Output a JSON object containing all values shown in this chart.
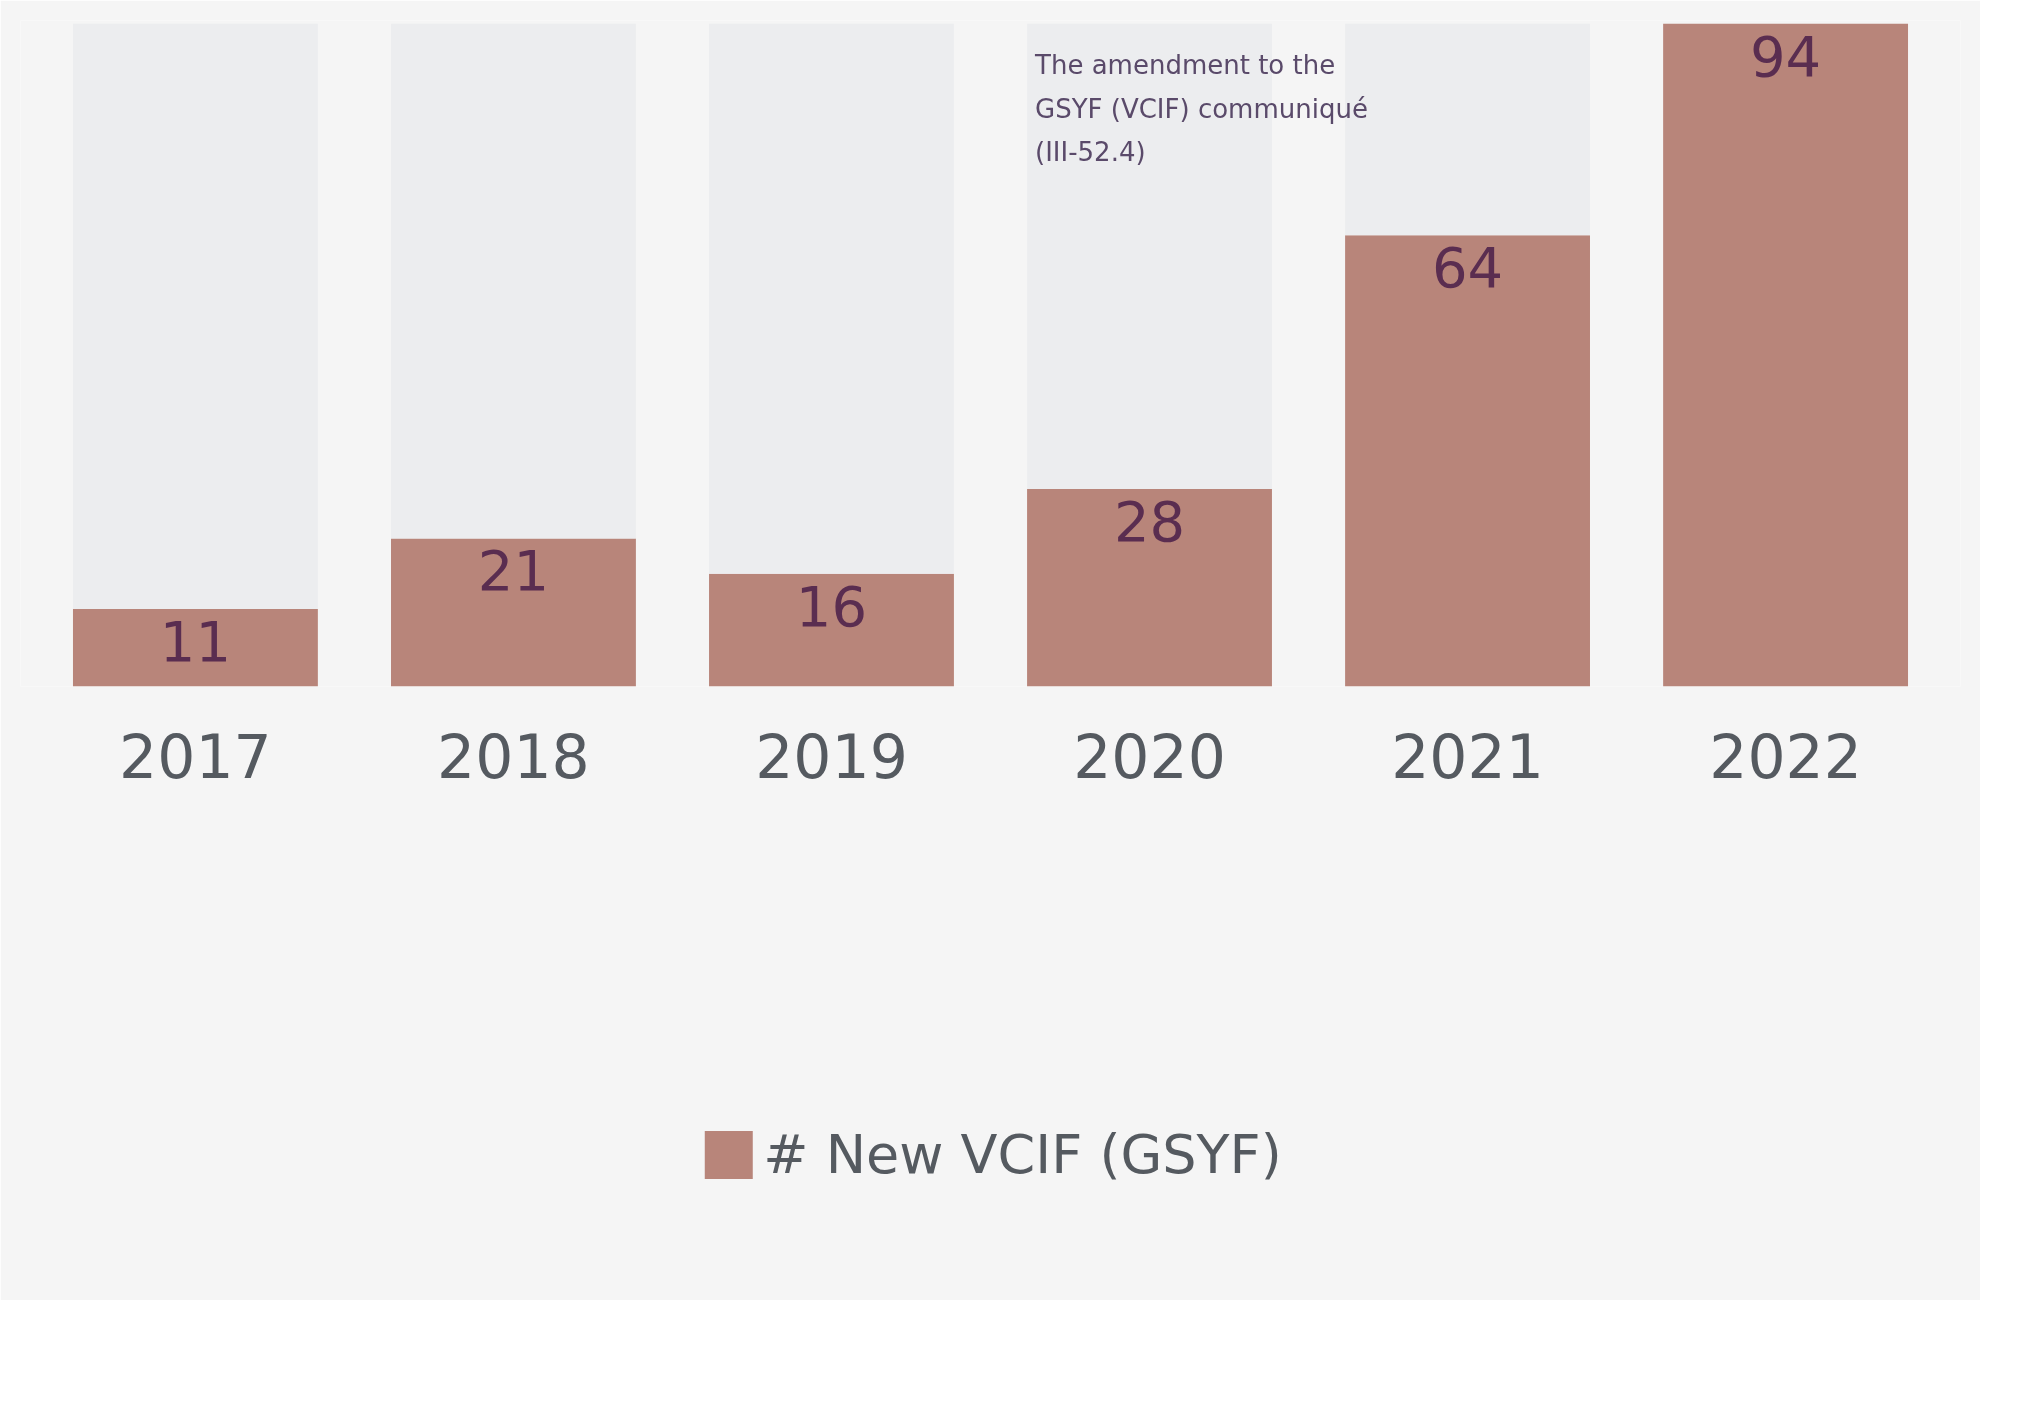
{
  "chart_data": {
    "type": "bar",
    "categories": [
      "2017",
      "2018",
      "2019",
      "2020",
      "2021",
      "2022"
    ],
    "stacked": true,
    "series": [
      {
        "name": "# New VCIF (GSYF)",
        "color": "#b8857a",
        "values": [
          11,
          21,
          16,
          28,
          64,
          94
        ],
        "value_labels": [
          "11",
          "21",
          "16",
          "28",
          "64",
          "94"
        ]
      },
      {
        "color": "#ecedef",
        "values": [
          83,
          73,
          78,
          66,
          30,
          null
        ]
      }
    ],
    "annotations": [
      "The amendment to the GSYF (VCIF) communiqué (III-52.4)"
    ],
    "legend": "bottom",
    "grid": false,
    "tick_labels": "x"
  }
}
